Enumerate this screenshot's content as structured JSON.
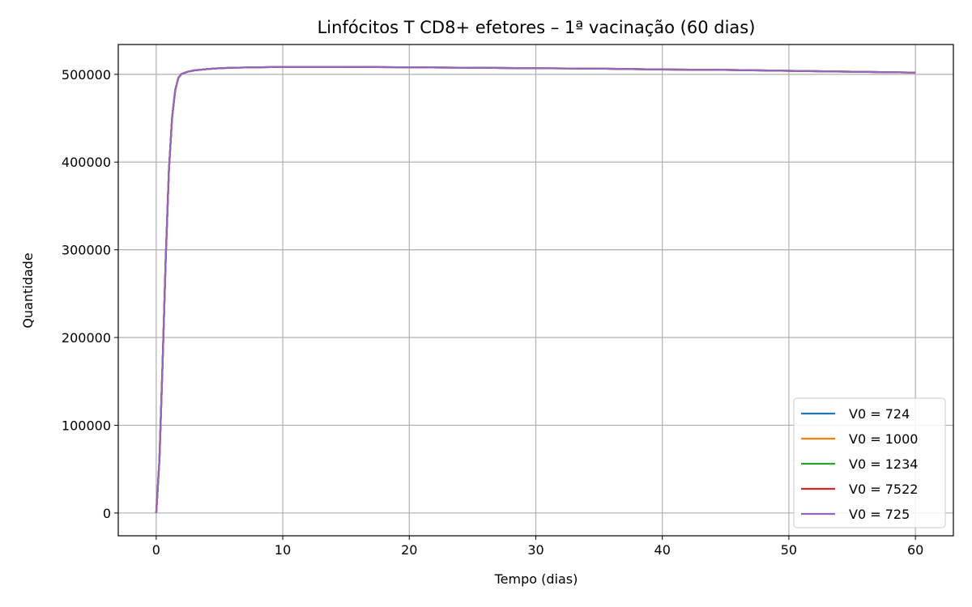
{
  "chart_data": {
    "type": "line",
    "title": "Linfócitos T CD8+ efetores – 1ª vacinação (60 dias)",
    "xlabel": "Tempo (dias)",
    "ylabel": "Quantidade",
    "xlim": [
      -3,
      63
    ],
    "ylim": [
      -26000,
      534000
    ],
    "xticks": [
      0,
      10,
      20,
      30,
      40,
      50,
      60
    ],
    "xtick_labels": [
      "0",
      "10",
      "20",
      "30",
      "40",
      "50",
      "60"
    ],
    "yticks": [
      0,
      100000,
      200000,
      300000,
      400000,
      500000
    ],
    "ytick_labels": [
      "0",
      "100000",
      "200000",
      "300000",
      "400000",
      "500000"
    ],
    "grid": true,
    "legend_position": "lower-right",
    "x": [
      0,
      0.25,
      0.5,
      0.75,
      1,
      1.25,
      1.5,
      1.75,
      2,
      2.5,
      3,
      4,
      5,
      6,
      8,
      10,
      15,
      20,
      25,
      30,
      35,
      40,
      45,
      50,
      55,
      60
    ],
    "series": [
      {
        "name": "V0 = 724",
        "color": "#1f77b4",
        "values": [
          0,
          60000,
          170000,
          290000,
          390000,
          450000,
          482000,
          496000,
          500500,
          503000,
          504500,
          506000,
          507000,
          507500,
          508000,
          508500,
          508500,
          508000,
          507500,
          507000,
          506500,
          505500,
          505000,
          504000,
          503000,
          502000
        ]
      },
      {
        "name": "V0 = 1000",
        "color": "#ff7f0e",
        "values": [
          0,
          60000,
          170000,
          290000,
          390000,
          450000,
          482000,
          496000,
          500500,
          503000,
          504500,
          506000,
          507000,
          507500,
          508000,
          508500,
          508500,
          508000,
          507500,
          507000,
          506500,
          505500,
          505000,
          504000,
          503000,
          502000
        ]
      },
      {
        "name": "V0 = 1234",
        "color": "#2ca02c",
        "values": [
          0,
          60000,
          170000,
          290000,
          390000,
          450000,
          482000,
          496000,
          500500,
          503000,
          504500,
          506000,
          507000,
          507500,
          508000,
          508500,
          508500,
          508000,
          507500,
          507000,
          506500,
          505500,
          505000,
          504000,
          503000,
          502000
        ]
      },
      {
        "name": "V0 = 7522",
        "color": "#d62728",
        "values": [
          0,
          60000,
          170000,
          290000,
          390000,
          450000,
          482000,
          496000,
          500500,
          503000,
          504500,
          506000,
          507000,
          507500,
          508000,
          508500,
          508500,
          508000,
          507500,
          507000,
          506500,
          505500,
          505000,
          504000,
          503000,
          502000
        ]
      },
      {
        "name": "V0 = 725",
        "color": "#9467bd",
        "values": [
          0,
          60000,
          170000,
          290000,
          390000,
          450000,
          482000,
          496000,
          500500,
          503000,
          504500,
          506000,
          507000,
          507500,
          508000,
          508500,
          508500,
          508000,
          507500,
          507000,
          506500,
          505500,
          505000,
          504000,
          503000,
          502000
        ]
      }
    ]
  }
}
